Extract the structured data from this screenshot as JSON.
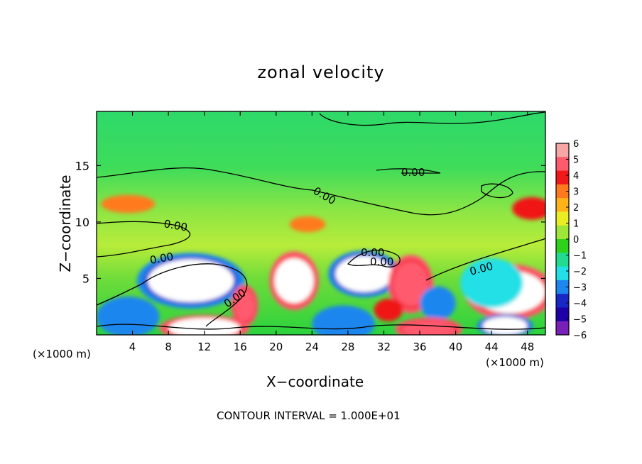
{
  "chart_data": {
    "type": "heatmap",
    "title": "zonal velocity",
    "xlabel": "X−coordinate",
    "ylabel": "Z−coordinate",
    "x_unit": "(×1000 m)",
    "xlim": [
      0,
      50
    ],
    "ylim": [
      0,
      19.8
    ],
    "x_ticks": [
      4,
      8,
      12,
      16,
      20,
      24,
      28,
      32,
      36,
      40,
      44,
      48
    ],
    "y_ticks": [
      5,
      10,
      15
    ],
    "colorbar": {
      "ticks": [
        6,
        5,
        4,
        3,
        2,
        1,
        0,
        -1,
        -2,
        -3,
        -4,
        -5,
        -6
      ],
      "colors": [
        "#f7a6a6",
        "#ff5a6e",
        "#f01818",
        "#ff7a1e",
        "#ffb31a",
        "#e9ee22",
        "#9ee63a",
        "#2ed21c",
        "#21dc8e",
        "#22e0e6",
        "#1e86ef",
        "#1828c8",
        "#1e00a8",
        "#7820b8"
      ]
    },
    "contour_label": "0.00",
    "footnote": "CONTOUR INTERVAL = 1.000E+01",
    "field_blobs": [
      {
        "x": 10.5,
        "z": 4.8,
        "rx": 4.8,
        "rz": 1.9,
        "value": -6
      },
      {
        "x": 29.8,
        "z": 5.4,
        "rx": 3.2,
        "rz": 1.6,
        "value": -6
      },
      {
        "x": 46.0,
        "z": 3.8,
        "rx": 4.0,
        "rz": 1.9,
        "value": 6
      },
      {
        "x": 22.0,
        "z": 4.8,
        "rx": 2.2,
        "rz": 2.0,
        "value": 6
      },
      {
        "x": 35.0,
        "z": 4.5,
        "rx": 2.0,
        "rz": 2.0,
        "value": 5
      },
      {
        "x": 3.5,
        "z": 1.6,
        "rx": 3.5,
        "rz": 1.8,
        "value": -4
      },
      {
        "x": 27.5,
        "z": 1.0,
        "rx": 3.5,
        "rz": 1.6,
        "value": -4
      },
      {
        "x": 16.5,
        "z": 2.6,
        "rx": 1.2,
        "rz": 1.4,
        "value": 5
      },
      {
        "x": 32.5,
        "z": 2.2,
        "rx": 1.6,
        "rz": 1.0,
        "value": 4
      },
      {
        "x": 48.5,
        "z": 11.2,
        "rx": 2.2,
        "rz": 1.0,
        "value": 4
      },
      {
        "x": 3.5,
        "z": 11.6,
        "rx": 3.0,
        "rz": 0.8,
        "value": 3
      },
      {
        "x": 23.5,
        "z": 9.8,
        "rx": 2.0,
        "rz": 0.7,
        "value": 3
      },
      {
        "x": 44.0,
        "z": 4.6,
        "rx": 3.5,
        "rz": 2.2,
        "value": -3
      },
      {
        "x": 38.0,
        "z": 2.8,
        "rx": 2.0,
        "rz": 1.5,
        "value": -4
      },
      {
        "x": 12.0,
        "z": 0.6,
        "rx": 4.0,
        "rz": 0.9,
        "value": 6
      },
      {
        "x": 37.0,
        "z": 0.5,
        "rx": 3.0,
        "rz": 0.8,
        "value": 5
      },
      {
        "x": 45.5,
        "z": 0.8,
        "rx": 2.5,
        "rz": 0.8,
        "value": -6
      }
    ]
  }
}
